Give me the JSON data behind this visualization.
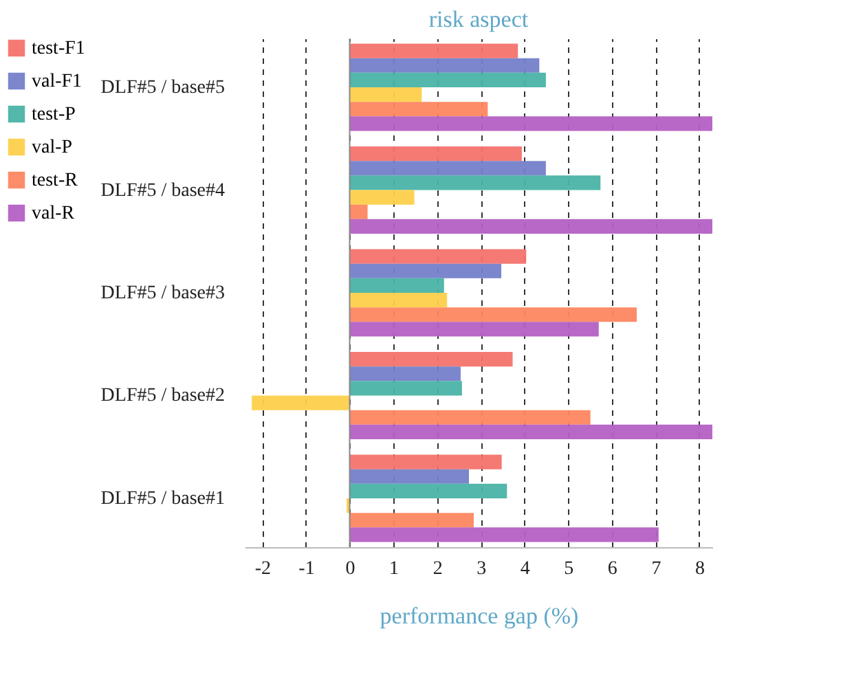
{
  "chart_data": {
    "type": "bar",
    "orientation": "horizontal",
    "title": "risk aspect",
    "xlabel": "performance gap (%)",
    "categories": [
      "DLF#5 / base#5",
      "DLF#5 / base#4",
      "DLF#5 / base#3",
      "DLF#5 / base#2",
      "DLF#5 / base#1"
    ],
    "series": [
      {
        "name": "test-F1",
        "color": "#f4736b",
        "values": [
          3.85,
          3.94,
          4.04,
          3.73,
          3.48
        ]
      },
      {
        "name": "val-F1",
        "color": "#7480c9",
        "values": [
          4.34,
          4.49,
          3.47,
          2.54,
          2.73
        ]
      },
      {
        "name": "test-P",
        "color": "#4ab3a6",
        "values": [
          4.49,
          5.74,
          2.16,
          2.57,
          3.6
        ]
      },
      {
        "name": "val-P",
        "color": "#fdd04b",
        "values": [
          1.65,
          1.48,
          2.23,
          -2.24,
          -0.07
        ]
      },
      {
        "name": "test-R",
        "color": "#fd8660",
        "values": [
          3.16,
          0.41,
          6.57,
          5.51,
          2.84
        ]
      },
      {
        "name": "val-R",
        "color": "#b460c3",
        "values": [
          8.3,
          8.3,
          5.7,
          8.3,
          7.07
        ]
      }
    ],
    "xlim": [
      -2.4,
      8.3
    ],
    "xticks": [
      -2,
      -1,
      0,
      1,
      2,
      3,
      4,
      5,
      6,
      7,
      8
    ],
    "grid": "x",
    "legend": "top left"
  }
}
